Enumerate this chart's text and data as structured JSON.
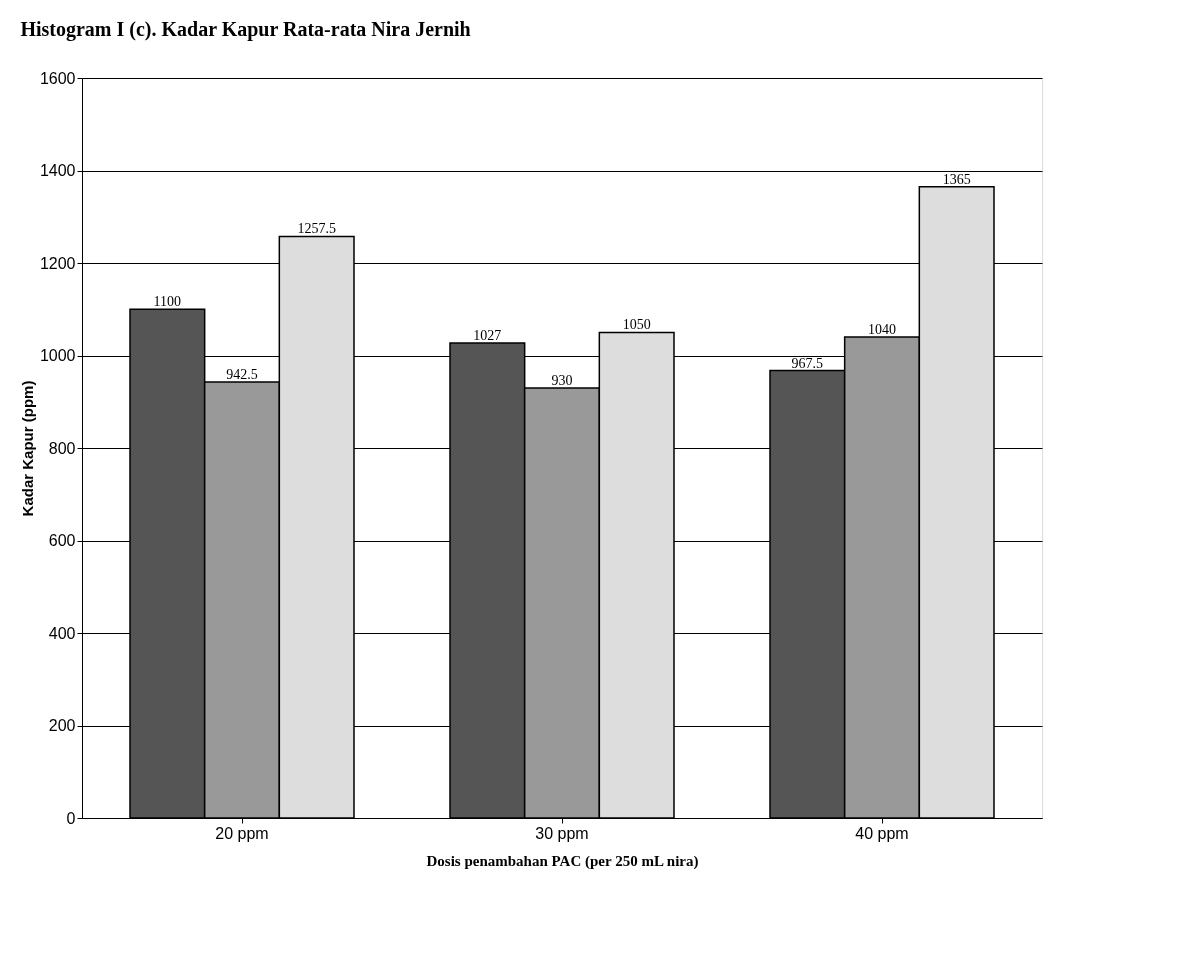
{
  "chart_data": {
    "type": "bar",
    "title": "Histogram I (c). Kadar Kapur Rata-rata Nira Jernih",
    "xlabel": "Dosis penambahan PAC (per 250 mL nira)",
    "ylabel": "Kadar Kapur (ppm)",
    "categories": [
      "20 ppm",
      "30 ppm",
      "40 ppm"
    ],
    "series": [
      {
        "color": "#555555",
        "values": [
          1100,
          1027,
          967.5
        ]
      },
      {
        "color": "#999999",
        "values": [
          942.5,
          930,
          1040
        ]
      },
      {
        "color": "#dddddd",
        "values": [
          1257.5,
          1050,
          1365
        ]
      }
    ],
    "ylim": [
      0,
      1600
    ],
    "yticks": [
      0,
      200,
      400,
      600,
      800,
      1000,
      1200,
      1400,
      1600
    ],
    "grid": "y",
    "data_labels": true,
    "legend": false
  }
}
